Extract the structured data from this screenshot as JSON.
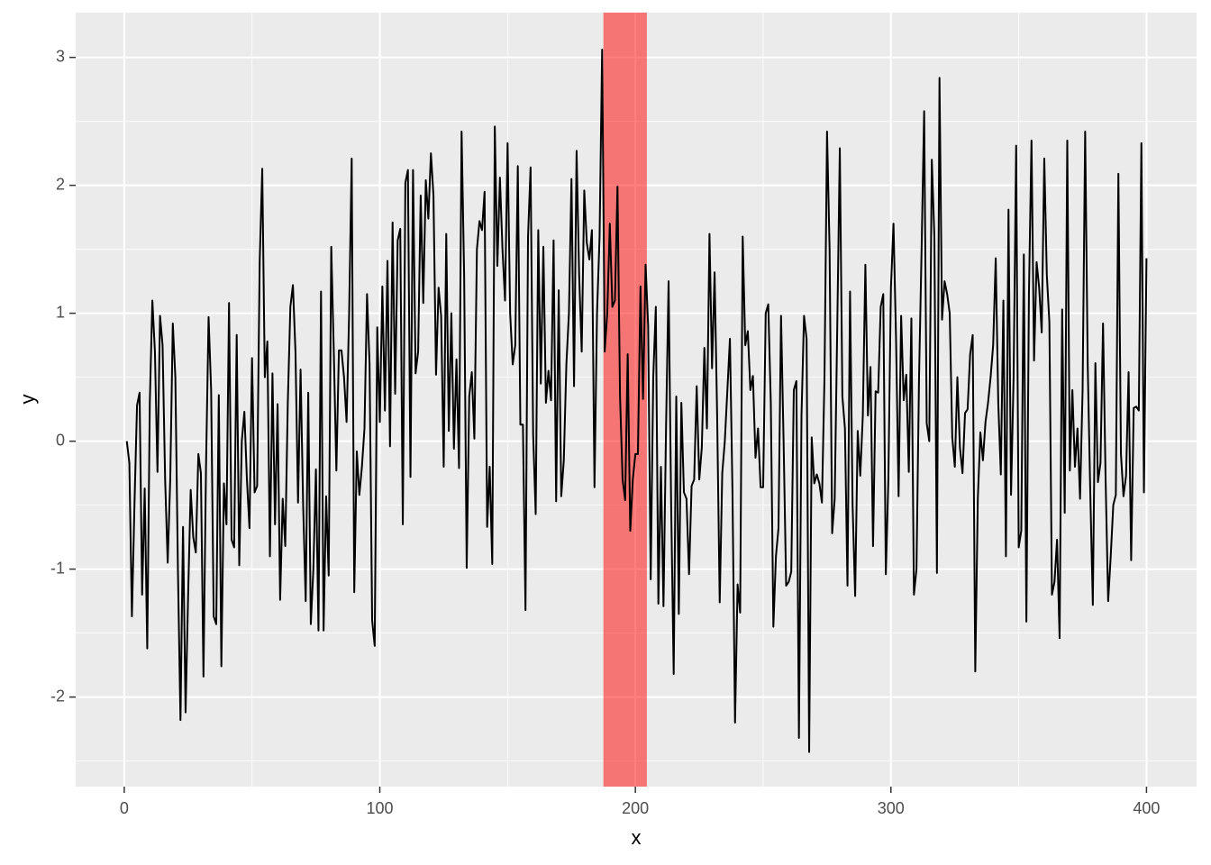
{
  "chart_data": {
    "type": "line",
    "xlabel": "x",
    "ylabel": "y",
    "xlim": [
      -19,
      419.6
    ],
    "ylim": [
      -2.7,
      3.35
    ],
    "xticks": [
      0,
      100,
      200,
      300,
      400
    ],
    "yticks": [
      -2,
      -1,
      0,
      1,
      2,
      3
    ],
    "xminor": [
      50,
      150,
      250,
      350
    ],
    "yminor": [
      -2.5,
      -1.5,
      -0.5,
      0.5,
      1.5,
      2.5
    ],
    "grid": true,
    "color": "#000000",
    "band": {
      "xmin": 187.5,
      "xmax": 204.5,
      "color": "#ff0000",
      "alpha": 0.5
    },
    "x": [
      1,
      2,
      3,
      4,
      5,
      6,
      7,
      8,
      9,
      10,
      11,
      12,
      13,
      14,
      15,
      16,
      17,
      18,
      19,
      20,
      21,
      22,
      23,
      24,
      25,
      26,
      27,
      28,
      29,
      30,
      31,
      32,
      33,
      34,
      35,
      36,
      37,
      38,
      39,
      40,
      41,
      42,
      43,
      44,
      45,
      46,
      47,
      48,
      49,
      50,
      51,
      52,
      53,
      54,
      55,
      56,
      57,
      58,
      59,
      60,
      61,
      62,
      63,
      64,
      65,
      66,
      67,
      68,
      69,
      70,
      71,
      72,
      73,
      74,
      75,
      76,
      77,
      78,
      79,
      80,
      81,
      82,
      83,
      84,
      85,
      86,
      87,
      88,
      89,
      90,
      91,
      92,
      93,
      94,
      95,
      96,
      97,
      98,
      99,
      100,
      101,
      102,
      103,
      104,
      105,
      106,
      107,
      108,
      109,
      110,
      111,
      112,
      113,
      114,
      115,
      116,
      117,
      118,
      119,
      120,
      121,
      122,
      123,
      124,
      125,
      126,
      127,
      128,
      129,
      130,
      131,
      132,
      133,
      134,
      135,
      136,
      137,
      138,
      139,
      140,
      141,
      142,
      143,
      144,
      145,
      146,
      147,
      148,
      149,
      150,
      151,
      152,
      153,
      154,
      155,
      156,
      157,
      158,
      159,
      160,
      161,
      162,
      163,
      164,
      165,
      166,
      167,
      168,
      169,
      170,
      171,
      172,
      173,
      174,
      175,
      176,
      177,
      178,
      179,
      180,
      181,
      182,
      183,
      184,
      185,
      186,
      187,
      188,
      189,
      190,
      191,
      192,
      193,
      194,
      195,
      196,
      197,
      198,
      199,
      200,
      201,
      202,
      203,
      204,
      205,
      206,
      207,
      208,
      209,
      210,
      211,
      212,
      213,
      214,
      215,
      216,
      217,
      218,
      219,
      220,
      221,
      222,
      223,
      224,
      225,
      226,
      227,
      228,
      229,
      230,
      231,
      232,
      233,
      234,
      235,
      236,
      237,
      238,
      239,
      240,
      241,
      242,
      243,
      244,
      245,
      246,
      247,
      248,
      249,
      250,
      251,
      252,
      253,
      254,
      255,
      256,
      257,
      258,
      259,
      260,
      261,
      262,
      263,
      264,
      265,
      266,
      267,
      268,
      269,
      270,
      271,
      272,
      273,
      274,
      275,
      276,
      277,
      278,
      279,
      280,
      281,
      282,
      283,
      284,
      285,
      286,
      287,
      288,
      289,
      290,
      291,
      292,
      293,
      294,
      295,
      296,
      297,
      298,
      299,
      300,
      301,
      302,
      303,
      304,
      305,
      306,
      307,
      308,
      309,
      310,
      311,
      312,
      313,
      314,
      315,
      316,
      317,
      318,
      319,
      320,
      321,
      322,
      323,
      324,
      325,
      326,
      327,
      328,
      329,
      330,
      331,
      332,
      333,
      334,
      335,
      336,
      337,
      338,
      339,
      340,
      341,
      342,
      343,
      344,
      345,
      346,
      347,
      348,
      349,
      350,
      351,
      352,
      353,
      354,
      355,
      356,
      357,
      358,
      359,
      360,
      361,
      362,
      363,
      364,
      365,
      366,
      367,
      368,
      369,
      370,
      371,
      372,
      373,
      374,
      375,
      376,
      377,
      378,
      379,
      380,
      381,
      382,
      383,
      384,
      385,
      386,
      387,
      388,
      389,
      390,
      391,
      392,
      393,
      394,
      395,
      396,
      397,
      398,
      399,
      400
    ],
    "values": [
      0.0,
      -0.17,
      -1.37,
      -0.5,
      0.28,
      0.38,
      -1.2,
      -0.37,
      -1.62,
      0.3,
      1.1,
      0.7,
      -0.24,
      0.98,
      0.75,
      -0.3,
      -0.95,
      -0.3,
      0.92,
      0.5,
      -1.0,
      -2.18,
      -0.67,
      -2.12,
      -1.2,
      -0.38,
      -0.75,
      -0.87,
      -0.1,
      -0.25,
      -1.84,
      -0.2,
      0.97,
      0.4,
      -1.37,
      -1.43,
      0.36,
      -1.76,
      -0.33,
      -0.65,
      1.08,
      -0.77,
      -0.83,
      0.83,
      -0.97,
      0.0,
      0.23,
      -0.3,
      -0.68,
      0.65,
      -0.4,
      -0.35,
      1.4,
      2.13,
      0.5,
      0.78,
      -0.9,
      0.53,
      -0.65,
      0.29,
      -1.24,
      -0.45,
      -0.82,
      0.3,
      1.05,
      1.22,
      0.7,
      -0.48,
      0.56,
      -0.5,
      -1.25,
      0.38,
      -1.43,
      -1.0,
      -0.22,
      -1.48,
      1.17,
      -1.48,
      -0.43,
      -1.05,
      1.52,
      0.7,
      -0.23,
      0.71,
      0.71,
      0.5,
      0.15,
      1.0,
      2.21,
      -1.18,
      -0.08,
      -0.42,
      -0.2,
      0.1,
      1.15,
      0.6,
      -1.4,
      -1.6,
      0.89,
      0.15,
      1.21,
      0.24,
      1.41,
      -0.04,
      1.71,
      0.37,
      1.57,
      1.66,
      -0.65,
      2.02,
      2.12,
      -0.28,
      2.12,
      0.53,
      0.7,
      1.92,
      1.08,
      2.04,
      1.74,
      2.25,
      1.92,
      0.52,
      1.2,
      0.98,
      -0.2,
      1.62,
      0.08,
      1.0,
      -0.06,
      0.64,
      -0.21,
      2.42,
      1.3,
      -0.99,
      0.35,
      0.54,
      0.02,
      1.5,
      1.72,
      1.65,
      1.95,
      -0.67,
      -0.2,
      -0.96,
      2.46,
      1.37,
      2.06,
      1.5,
      1.1,
      2.33,
      1.0,
      0.6,
      0.75,
      2.15,
      0.13,
      0.13,
      -1.32,
      1.6,
      2.14,
      0.05,
      -0.57,
      1.65,
      0.45,
      1.52,
      0.3,
      0.55,
      0.32,
      1.57,
      -0.47,
      1.18,
      -0.43,
      -0.15,
      0.6,
      1.0,
      2.05,
      0.43,
      2.27,
      1.3,
      0.7,
      1.96,
      1.55,
      1.42,
      1.65,
      -0.36,
      1.0,
      1.6,
      3.06,
      0.7,
      1.0,
      1.7,
      1.05,
      1.1,
      1.99,
      0.35,
      -0.3,
      -0.46,
      0.68,
      -0.7,
      -0.3,
      -0.1,
      -0.1,
      1.21,
      0.33,
      1.38,
      0.9,
      -1.08,
      0.5,
      1.05,
      -1.27,
      -0.2,
      -1.29,
      0.1,
      1.25,
      -0.5,
      -1.82,
      0.35,
      -1.35,
      0.3,
      -0.4,
      -0.45,
      -1.04,
      -0.35,
      -0.3,
      0.43,
      -0.3,
      -0.05,
      0.73,
      0.1,
      1.62,
      0.57,
      1.32,
      0.2,
      -1.26,
      -0.25,
      0.0,
      0.4,
      0.8,
      -0.4,
      -2.2,
      -1.12,
      -1.34,
      1.6,
      0.75,
      0.86,
      0.4,
      0.51,
      -0.13,
      0.1,
      -0.36,
      -0.36,
      1.0,
      1.07,
      0.3,
      -1.45,
      -0.9,
      -0.68,
      0.98,
      0.0,
      -1.13,
      -1.1,
      -1.02,
      0.4,
      0.47,
      -2.32,
      0.2,
      0.98,
      0.8,
      -2.43,
      0.03,
      -0.33,
      -0.26,
      -0.33,
      -0.48,
      0.5,
      2.42,
      1.5,
      -0.72,
      -0.45,
      0.9,
      2.29,
      0.35,
      0.1,
      -1.13,
      1.17,
      -0.5,
      -1.21,
      0.08,
      -0.27,
      0.2,
      1.38,
      0.2,
      0.58,
      -0.82,
      0.39,
      0.38,
      1.05,
      1.15,
      -1.04,
      -0.3,
      1.2,
      1.7,
      0.8,
      -0.43,
      0.98,
      0.32,
      0.52,
      -0.24,
      0.96,
      -1.2,
      -1.0,
      0.5,
      1.5,
      2.58,
      0.14,
      0.0,
      2.2,
      1.6,
      -1.03,
      2.84,
      0.95,
      1.25,
      1.15,
      1.0,
      0.03,
      -0.2,
      0.5,
      -0.05,
      -0.25,
      0.22,
      0.25,
      0.68,
      0.83,
      -1.8,
      -0.45,
      0.07,
      -0.15,
      0.15,
      0.3,
      0.5,
      0.75,
      1.43,
      0.3,
      -0.26,
      1.1,
      -0.9,
      1.81,
      -0.42,
      0.5,
      2.31,
      -0.83,
      -0.7,
      1.46,
      -1.41,
      1.15,
      2.35,
      0.63,
      1.4,
      1.2,
      0.85,
      2.21,
      1.3,
      0.93,
      -1.2,
      -1.1,
      -0.77,
      -1.54,
      1.03,
      -0.56,
      2.35,
      -0.23,
      0.4,
      -0.2,
      0.1,
      -0.45,
      0.4,
      2.42,
      0.6,
      -0.4,
      -1.28,
      0.61,
      -0.32,
      -0.17,
      0.92,
      -0.3,
      -1.25,
      -0.9,
      -0.5,
      -0.42,
      2.09,
      -0.1,
      -0.43,
      -0.27,
      0.54,
      -0.93,
      0.26,
      0.27,
      0.24,
      2.33,
      -0.4,
      1.43
    ]
  }
}
